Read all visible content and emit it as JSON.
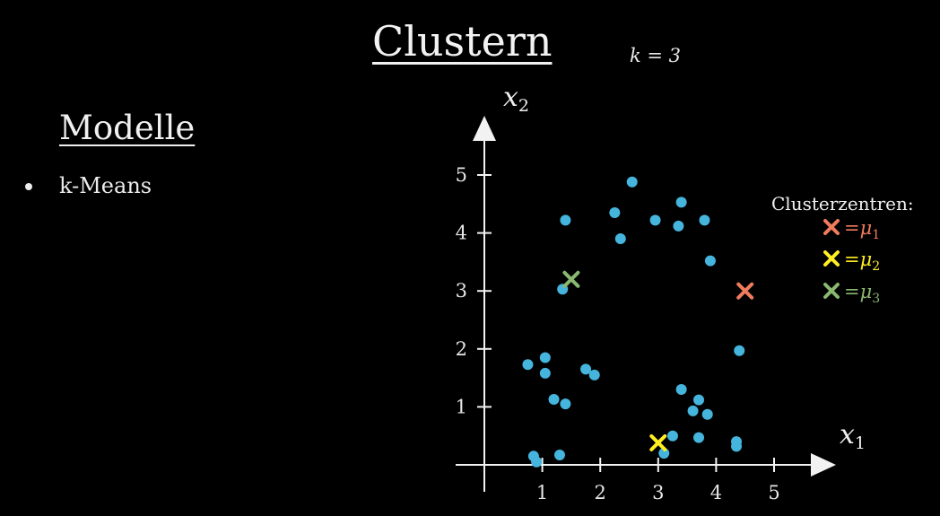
{
  "title": "Clustern",
  "k_label": "k = 3",
  "sidebar": {
    "heading": "Modelle",
    "items": [
      {
        "label": "k-Means"
      }
    ]
  },
  "chart_data": {
    "type": "scatter",
    "title": "",
    "xlabel": "x",
    "xlabel_sub": "1",
    "ylabel": "x",
    "ylabel_sub": "2",
    "xlim": [
      0,
      5.5
    ],
    "ylim": [
      0,
      5.5
    ],
    "xticks": [
      1,
      2,
      3,
      4,
      5
    ],
    "yticks": [
      1,
      2,
      3,
      4,
      5
    ],
    "grid": false,
    "point_color": "#45b5dd",
    "points": [
      {
        "x": 2.55,
        "y": 4.88
      },
      {
        "x": 3.4,
        "y": 4.53
      },
      {
        "x": 2.25,
        "y": 4.35
      },
      {
        "x": 1.4,
        "y": 4.22
      },
      {
        "x": 2.95,
        "y": 4.22
      },
      {
        "x": 3.35,
        "y": 4.12
      },
      {
        "x": 3.8,
        "y": 4.22
      },
      {
        "x": 2.35,
        "y": 3.9
      },
      {
        "x": 3.9,
        "y": 3.52
      },
      {
        "x": 1.35,
        "y": 3.03
      },
      {
        "x": 4.4,
        "y": 1.97
      },
      {
        "x": 0.75,
        "y": 1.73
      },
      {
        "x": 1.05,
        "y": 1.85
      },
      {
        "x": 1.05,
        "y": 1.58
      },
      {
        "x": 1.75,
        "y": 1.65
      },
      {
        "x": 1.9,
        "y": 1.55
      },
      {
        "x": 1.2,
        "y": 1.13
      },
      {
        "x": 1.4,
        "y": 1.05
      },
      {
        "x": 3.4,
        "y": 1.3
      },
      {
        "x": 3.7,
        "y": 1.12
      },
      {
        "x": 3.6,
        "y": 0.93
      },
      {
        "x": 3.85,
        "y": 0.87
      },
      {
        "x": 3.25,
        "y": 0.5
      },
      {
        "x": 3.7,
        "y": 0.47
      },
      {
        "x": 4.35,
        "y": 0.4
      },
      {
        "x": 4.35,
        "y": 0.32
      },
      {
        "x": 3.1,
        "y": 0.2
      },
      {
        "x": 0.85,
        "y": 0.15
      },
      {
        "x": 0.9,
        "y": 0.05
      },
      {
        "x": 1.3,
        "y": 0.17
      }
    ],
    "centroids": [
      {
        "x": 4.5,
        "y": 3.0,
        "color": "#f07c5e"
      },
      {
        "x": 3.0,
        "y": 0.38,
        "color": "#ffee22"
      },
      {
        "x": 1.5,
        "y": 3.2,
        "color": "#8ab870"
      }
    ],
    "legend": {
      "title": "Clusterzentren:",
      "position": "top-right",
      "entries": [
        {
          "eq": "=",
          "mu": "μ",
          "sub": "1",
          "color": "#f07c5e"
        },
        {
          "eq": "=",
          "mu": "μ",
          "sub": "2",
          "color": "#ffee22"
        },
        {
          "eq": "=",
          "mu": "μ",
          "sub": "3",
          "color": "#8ab870"
        }
      ]
    }
  }
}
